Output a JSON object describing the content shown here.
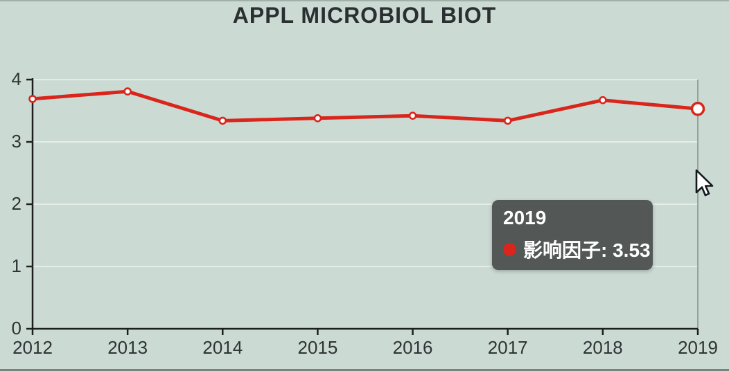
{
  "title": "APPL MICROBIOL BIOT",
  "chart_data": {
    "type": "line",
    "title": "APPL MICROBIOL BIOT",
    "x": [
      2012,
      2013,
      2014,
      2015,
      2016,
      2017,
      2018,
      2019
    ],
    "series": [
      {
        "name": "影响因子",
        "values": [
          3.69,
          3.81,
          3.34,
          3.38,
          3.42,
          3.34,
          3.67,
          3.53
        ],
        "color": "#d9251c"
      }
    ],
    "xlabel": "",
    "ylabel": "",
    "ylim": [
      0,
      4
    ],
    "yticks": [
      0,
      1,
      2,
      3,
      4
    ],
    "grid": true,
    "legend_position": "none",
    "marker": "open-circle",
    "highlighted_x": 2019,
    "highlighted_value": 3.53
  },
  "tooltip": {
    "year": "2019",
    "series_label": "影响因子",
    "value": "3.53",
    "text": "影响因子: 3.53",
    "marker_color": "#d9251c"
  },
  "colors": {
    "background": "#cbdbd3",
    "line": "#d9251c",
    "axis": "#1c1e1f",
    "text": "#2e3336",
    "gridline": "rgba(255,255,255,0.5)",
    "crosshair": "#8a938f",
    "tooltip_bg": "rgba(73,78,78,0.93)"
  },
  "icons": {
    "cursor": "arrow-pointer-icon",
    "tooltip_marker": "series-dot-icon"
  }
}
